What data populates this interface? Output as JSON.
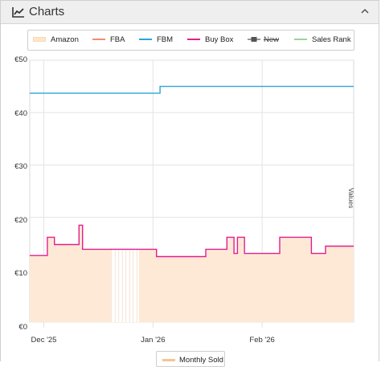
{
  "panel": {
    "title": "Charts",
    "icon": "line-chart-icon",
    "collapse_icon": "chevron-up-icon"
  },
  "legend": [
    {
      "label": "Amazon",
      "color": "#f9d9b3",
      "style": "area",
      "enabled": true
    },
    {
      "label": "FBA",
      "color": "#f28c6e",
      "style": "line",
      "enabled": true
    },
    {
      "label": "FBM",
      "color": "#2aa7d6",
      "style": "line",
      "enabled": true
    },
    {
      "label": "Buy Box",
      "color": "#e31e8f",
      "style": "line",
      "enabled": true
    },
    {
      "label": "New",
      "color": "#555555",
      "style": "square-line",
      "enabled": false
    },
    {
      "label": "Sales Rank",
      "color": "#9bd39b",
      "style": "line",
      "enabled": true
    }
  ],
  "bottom_legend": {
    "label": "Monthly Sold",
    "color": "#f5c58f"
  },
  "chart_data": {
    "type": "line",
    "ylabel": "Values",
    "y_tick_labels": [
      "€50",
      "€40",
      "€30",
      "€20",
      "€10",
      "€0"
    ],
    "y_ticks": [
      50,
      40,
      30,
      20,
      10,
      0
    ],
    "ylim": [
      0,
      50
    ],
    "x_tick_labels": [
      "Dec '25",
      "Jan '26",
      "Feb '26"
    ],
    "x_ticks": [
      "2025-12-01",
      "2026-01-01",
      "2026-02-01"
    ],
    "xlim": [
      "2025-11-27",
      "2026-02-27"
    ],
    "grid": true,
    "series": [
      {
        "name": "FBM",
        "color": "#2aa7d6",
        "step": true,
        "points": [
          [
            "2025-11-27",
            43.7
          ],
          [
            "2026-01-03",
            45.0
          ],
          [
            "2026-02-27",
            45.0
          ]
        ]
      },
      {
        "name": "Buy Box",
        "color": "#e31e8f",
        "step": true,
        "points": [
          [
            "2025-11-27",
            12.7
          ],
          [
            "2025-12-02",
            16.2
          ],
          [
            "2025-12-04",
            14.8
          ],
          [
            "2025-12-11",
            18.5
          ],
          [
            "2025-12-12",
            13.9
          ],
          [
            "2026-01-02",
            12.5
          ],
          [
            "2026-01-16",
            13.9
          ],
          [
            "2026-01-22",
            16.2
          ],
          [
            "2026-01-24",
            13.1
          ],
          [
            "2026-01-25",
            16.2
          ],
          [
            "2026-01-27",
            13.1
          ],
          [
            "2026-02-06",
            16.2
          ],
          [
            "2026-02-15",
            13.1
          ],
          [
            "2026-02-19",
            14.5
          ],
          [
            "2026-02-27",
            14.5
          ]
        ]
      },
      {
        "name": "Amazon",
        "color": "#f9d9b3",
        "area": true,
        "step": true,
        "points": [
          [
            "2025-11-27",
            12.7
          ],
          [
            "2025-12-02",
            16.2
          ],
          [
            "2025-12-04",
            14.8
          ],
          [
            "2025-12-11",
            18.5
          ],
          [
            "2025-12-12",
            13.9
          ],
          [
            "2026-01-02",
            12.5
          ],
          [
            "2026-01-16",
            13.9
          ],
          [
            "2026-01-22",
            16.2
          ],
          [
            "2026-01-24",
            13.1
          ],
          [
            "2026-01-25",
            16.2
          ],
          [
            "2026-01-27",
            13.1
          ],
          [
            "2026-02-06",
            16.2
          ],
          [
            "2026-02-15",
            13.1
          ],
          [
            "2026-02-19",
            14.5
          ],
          [
            "2026-02-27",
            14.5
          ]
        ],
        "gap": [
          "2025-12-20",
          "2025-12-28"
        ]
      }
    ]
  }
}
